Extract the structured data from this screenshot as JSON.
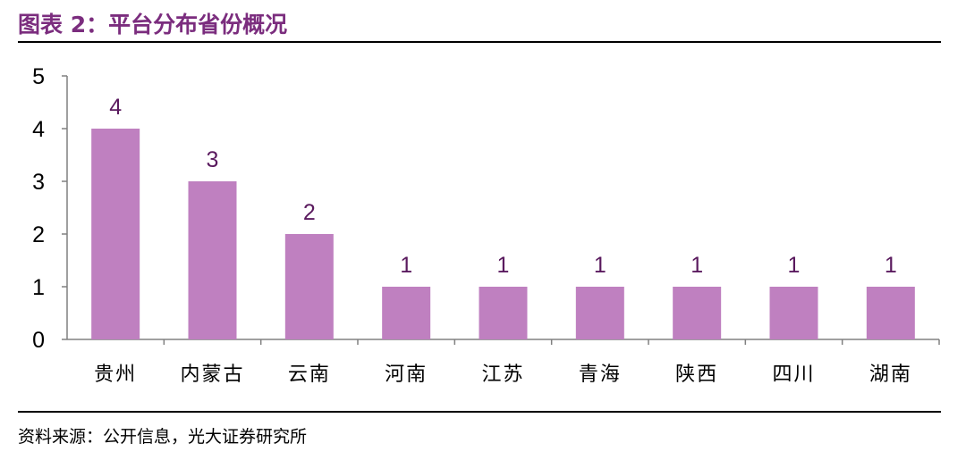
{
  "header": {
    "title": "图表 2：平台分布省份概况"
  },
  "footer": {
    "source": "资料来源：公开信息，光大证券研究所"
  },
  "colors": {
    "bar": "#BF80C0",
    "title": "#7B2D7E",
    "data_label": "#5A1A5E"
  },
  "chart_data": {
    "type": "bar",
    "categories": [
      "贵州",
      "内蒙古",
      "云南",
      "河南",
      "江苏",
      "青海",
      "陕西",
      "四川",
      "湖南"
    ],
    "values": [
      4,
      3,
      2,
      1,
      1,
      1,
      1,
      1,
      1
    ],
    "yticks": [
      "0",
      "1",
      "2",
      "3",
      "4",
      "5"
    ],
    "ylim": [
      0,
      5
    ],
    "grid": false,
    "legend": "none",
    "data_labels": true
  }
}
